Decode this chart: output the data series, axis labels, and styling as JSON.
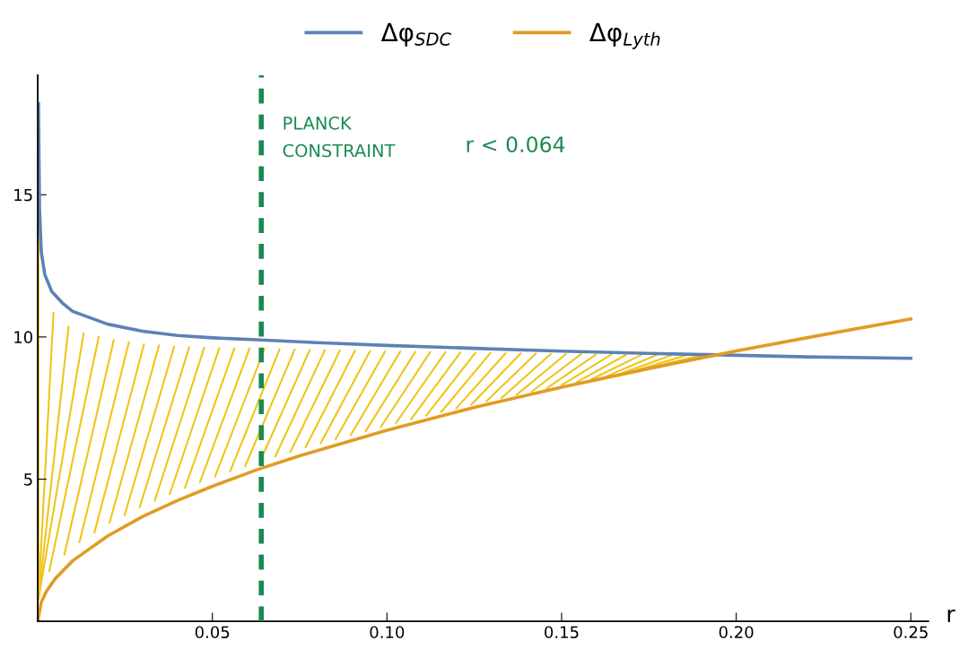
{
  "chart_data": {
    "type": "line",
    "xlabel": "r",
    "legend": "top",
    "grid": false,
    "xlim": [
      0,
      0.255
    ],
    "ylim": [
      0,
      19.2
    ],
    "xticks": [
      0.05,
      {
        "value": 0.1,
        "label": "0.10"
      },
      0.15,
      {
        "value": 0.2,
        "label": "0.20"
      },
      0.25
    ],
    "yticks": [
      5,
      10,
      15
    ],
    "series": [
      {
        "name": "Δφ$_{SDC}$",
        "color": "#5e81b5",
        "x": [
          0.0002,
          0.0005,
          0.001,
          0.002,
          0.004,
          0.007,
          0.01,
          0.02,
          0.03,
          0.04,
          0.05,
          0.0625,
          0.08,
          0.1,
          0.125,
          0.15,
          0.175,
          0.195,
          0.22,
          0.25
        ],
        "values": [
          18.2,
          14.5,
          13.0,
          12.2,
          11.6,
          11.2,
          10.9,
          10.45,
          10.2,
          10.05,
          9.97,
          9.9,
          9.8,
          9.7,
          9.6,
          9.5,
          9.42,
          9.37,
          9.3,
          9.25
        ]
      },
      {
        "name": "Δφ$_{Lyth}$",
        "color": "#e19c24",
        "x": [
          0,
          0.001,
          0.0025,
          0.005,
          0.01,
          0.02,
          0.03,
          0.04,
          0.05,
          0.0625,
          0.075,
          0.1,
          0.125,
          0.15,
          0.175,
          0.2,
          0.225,
          0.25
        ],
        "values": [
          0,
          0.67,
          1.06,
          1.5,
          2.13,
          3.0,
          3.68,
          4.25,
          4.75,
          5.32,
          5.82,
          6.72,
          7.52,
          8.23,
          8.89,
          9.51,
          10.08,
          10.63
        ]
      }
    ],
    "ref_lines": [
      {
        "axis": "x",
        "value": 0.064,
        "label": "PLANCK\nCONSTRAINT",
        "color": "#1a8a50",
        "line_style": "dashed"
      }
    ],
    "annotations": [
      "r < 0.064"
    ]
  }
}
